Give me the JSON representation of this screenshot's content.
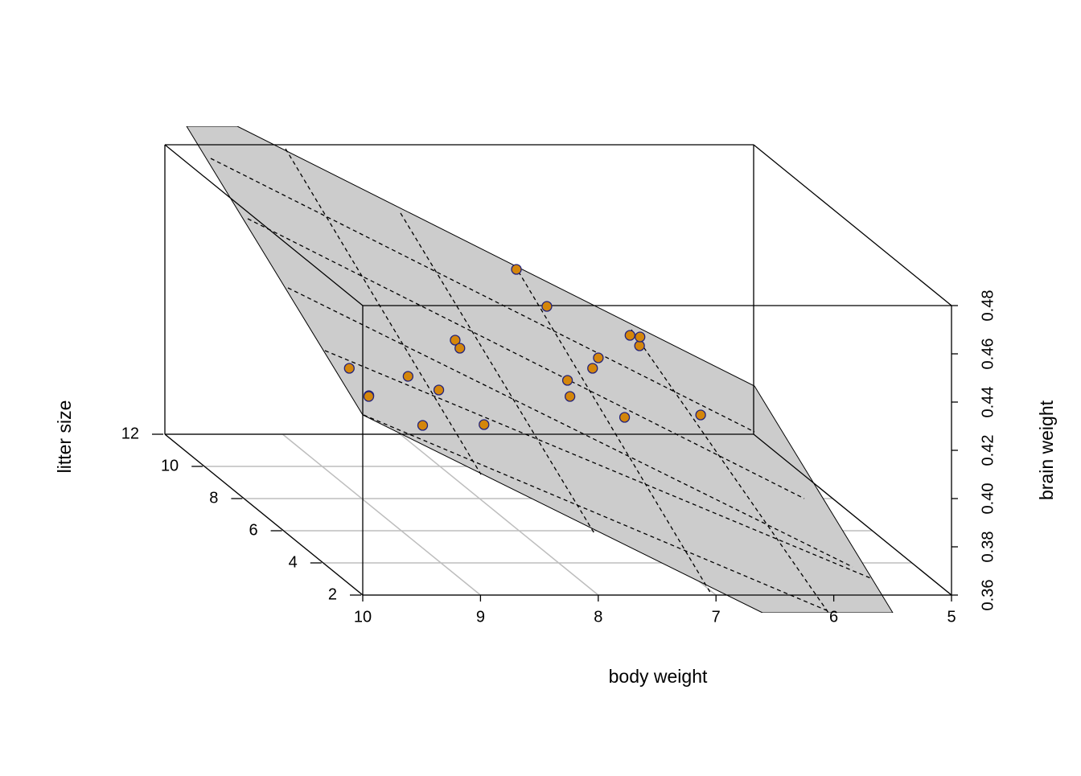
{
  "chart_data": {
    "type": "scatter3d",
    "xlabel": "body weight",
    "ylabel": "litter size",
    "zlabel": "brain weight",
    "x": [
      9.447,
      9.78,
      9.155,
      9.613,
      8.85,
      9.61,
      8.298,
      8.543,
      7.4,
      8.335,
      7.04,
      7.253,
      6.6,
      7.26,
      6.305,
      6.655,
      7.183,
      6.133,
      5.45,
      6.05
    ],
    "y": [
      3,
      3,
      4,
      4,
      5,
      5,
      6,
      6,
      7,
      7,
      8,
      8,
      9,
      9,
      10,
      10,
      11,
      11,
      12,
      12
    ],
    "z": [
      0.444,
      0.436,
      0.417,
      0.429,
      0.425,
      0.434,
      0.404,
      0.439,
      0.409,
      0.429,
      0.414,
      0.409,
      0.387,
      0.433,
      0.41,
      0.405,
      0.435,
      0.407,
      0.368,
      0.401
    ],
    "xlim": [
      10,
      5
    ],
    "ylim": [
      2,
      12
    ],
    "zlim": [
      0.36,
      0.48
    ],
    "xticks": [
      10,
      9,
      8,
      7,
      6,
      5
    ],
    "yticks": [
      2,
      4,
      6,
      8,
      10,
      12
    ],
    "zticks": [
      0.36,
      0.38,
      {
        "value": 0.4,
        "label": "0.40"
      },
      0.42,
      0.44,
      0.46,
      0.48
    ],
    "grid": true,
    "color": "#d4860b",
    "edgecolor": "#23237a"
  }
}
